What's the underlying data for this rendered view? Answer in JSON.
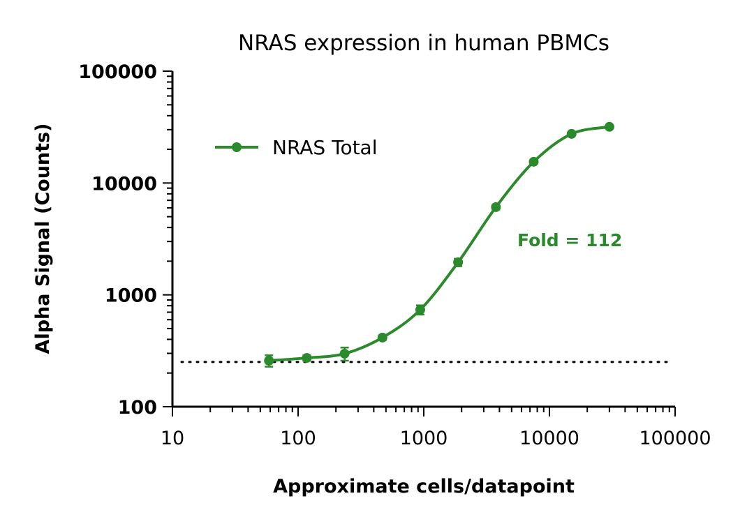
{
  "chart_data": {
    "type": "line",
    "title": "NRAS expression in human PBMCs",
    "xlabel": "Approximate cells/datapoint",
    "ylabel": "Alpha Signal (Counts)",
    "xscale": "log",
    "yscale": "log",
    "xlim": [
      10,
      100000
    ],
    "ylim": [
      100,
      100000
    ],
    "xticks": [
      "10",
      "100",
      "1000",
      "10000",
      "100000"
    ],
    "yticks": [
      "100",
      "1000",
      "10000",
      "100000"
    ],
    "grid": false,
    "legend_placement": "top-left",
    "series": [
      {
        "name": "NRAS Total",
        "color": "#2b8a2b",
        "marker": "circle",
        "fit": "sigmoidal curve",
        "x": [
          58.6,
          117.2,
          234.4,
          468.8,
          937.5,
          1875,
          3750,
          7500,
          15000,
          30000
        ],
        "y": [
          258,
          273,
          298,
          415,
          736,
          1955,
          6085,
          15500,
          27500,
          31800
        ],
        "y_err": [
          30,
          15,
          40,
          20,
          70,
          150,
          300,
          600,
          800,
          800
        ]
      }
    ],
    "reference_line": {
      "y": 251,
      "style": "dotted",
      "color": "#000000"
    },
    "annotations": [
      {
        "text": "Fold = 112",
        "color": "#2b8a2b"
      }
    ]
  }
}
